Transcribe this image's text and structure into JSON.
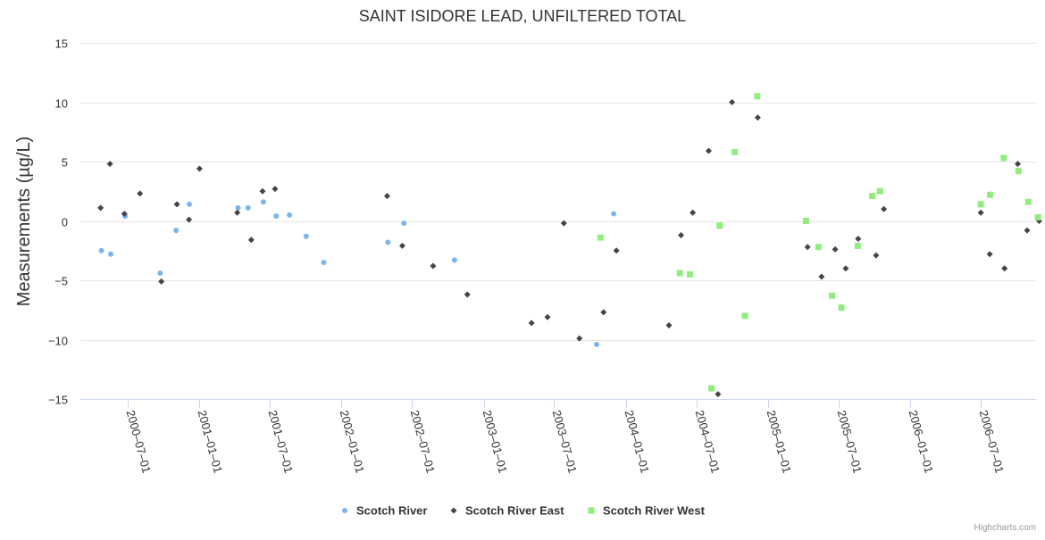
{
  "chart_data": {
    "type": "scatter",
    "title": "SAINT ISIDORE LEAD, UNFILTERED TOTAL",
    "ylabel": "Measurements (µg/L)",
    "xlabel": "",
    "ylim": [
      -15,
      15
    ],
    "yticks": [
      15,
      10,
      5,
      0,
      -5,
      -10,
      -15
    ],
    "xlim": [
      "2000-03-01",
      "2006-11-20"
    ],
    "xticks": [
      "2000-07-01",
      "2001-01-01",
      "2001-07-01",
      "2002-01-01",
      "2002-07-01",
      "2003-01-01",
      "2003-07-01",
      "2004-01-01",
      "2004-07-01",
      "2005-01-01",
      "2005-07-01",
      "2006-01-01",
      "2006-07-01"
    ],
    "grid": true,
    "legend": "bottom-center",
    "series": [
      {
        "name": "Scotch River",
        "color": "#7cb5ec",
        "marker": "circle",
        "points": [
          [
            "2000-04-24",
            -2.5
          ],
          [
            "2000-05-18",
            -2.8
          ],
          [
            "2000-06-24",
            0.4
          ],
          [
            "2000-09-22",
            -4.4
          ],
          [
            "2000-11-02",
            -0.8
          ],
          [
            "2000-12-06",
            1.4
          ],
          [
            "2001-04-10",
            1.1
          ],
          [
            "2001-05-06",
            1.1
          ],
          [
            "2001-06-14",
            1.6
          ],
          [
            "2001-07-17",
            0.4
          ],
          [
            "2001-08-20",
            0.5
          ],
          [
            "2001-10-02",
            -1.3
          ],
          [
            "2001-11-16",
            -3.5
          ],
          [
            "2002-04-30",
            -1.8
          ],
          [
            "2002-06-10",
            -0.2
          ],
          [
            "2002-10-18",
            -3.3
          ],
          [
            "2003-10-18",
            -10.4
          ],
          [
            "2003-12-01",
            0.6
          ]
        ]
      },
      {
        "name": "Scotch River East",
        "color": "#434348",
        "marker": "diamond",
        "points": [
          [
            "2000-04-22",
            1.1
          ],
          [
            "2000-05-16",
            4.8
          ],
          [
            "2000-06-22",
            0.6
          ],
          [
            "2000-08-01",
            2.3
          ],
          [
            "2000-09-25",
            -5.1
          ],
          [
            "2000-11-04",
            1.4
          ],
          [
            "2000-12-05",
            0.1
          ],
          [
            "2001-01-01",
            4.4
          ],
          [
            "2001-04-08",
            0.7
          ],
          [
            "2001-05-14",
            -1.6
          ],
          [
            "2001-06-12",
            2.5
          ],
          [
            "2001-07-14",
            2.7
          ],
          [
            "2002-04-28",
            2.1
          ],
          [
            "2002-06-06",
            -2.1
          ],
          [
            "2002-08-24",
            -3.8
          ],
          [
            "2002-11-20",
            -6.2
          ],
          [
            "2003-05-04",
            -8.6
          ],
          [
            "2003-06-14",
            -8.1
          ],
          [
            "2003-07-26",
            -0.2
          ],
          [
            "2003-09-04",
            -9.9
          ],
          [
            "2003-11-05",
            -7.7
          ],
          [
            "2003-12-08",
            -2.5
          ],
          [
            "2004-04-21",
            -8.8
          ],
          [
            "2004-05-22",
            -1.2
          ],
          [
            "2004-06-21",
            0.7
          ],
          [
            "2004-08-01",
            5.9
          ],
          [
            "2004-08-25",
            -14.6
          ],
          [
            "2004-09-30",
            10.0
          ],
          [
            "2004-12-05",
            8.7
          ],
          [
            "2005-04-12",
            -2.2
          ],
          [
            "2005-05-18",
            -4.7
          ],
          [
            "2005-06-22",
            -2.4
          ],
          [
            "2005-07-19",
            -4.0
          ],
          [
            "2005-08-20",
            -1.5
          ],
          [
            "2005-10-05",
            -2.9
          ],
          [
            "2005-10-25",
            1.0
          ],
          [
            "2006-07-01",
            0.7
          ],
          [
            "2006-07-24",
            -2.8
          ],
          [
            "2006-08-31",
            -4.0
          ],
          [
            "2006-10-04",
            4.8
          ],
          [
            "2006-10-28",
            -0.8
          ],
          [
            "2006-11-28",
            0.0
          ]
        ]
      },
      {
        "name": "Scotch River West",
        "color": "#90ed7d",
        "marker": "square",
        "points": [
          [
            "2003-10-28",
            -1.4
          ],
          [
            "2004-05-19",
            -4.4
          ],
          [
            "2004-06-14",
            -4.5
          ],
          [
            "2004-08-08",
            -14.1
          ],
          [
            "2004-08-29",
            -0.4
          ],
          [
            "2004-10-07",
            5.8
          ],
          [
            "2004-11-02",
            -8.0
          ],
          [
            "2004-12-04",
            10.5
          ],
          [
            "2005-04-08",
            0.0
          ],
          [
            "2005-05-10",
            -2.2
          ],
          [
            "2005-06-14",
            -6.3
          ],
          [
            "2005-07-08",
            -7.3
          ],
          [
            "2005-08-19",
            -2.1
          ],
          [
            "2005-09-25",
            2.1
          ],
          [
            "2005-10-15",
            2.5
          ],
          [
            "2006-07-01",
            1.4
          ],
          [
            "2006-07-25",
            2.2
          ],
          [
            "2006-08-29",
            5.3
          ],
          [
            "2006-10-06",
            4.2
          ],
          [
            "2006-10-31",
            1.6
          ],
          [
            "2006-11-25",
            0.3
          ]
        ]
      }
    ],
    "credits": "Highcharts.com"
  }
}
